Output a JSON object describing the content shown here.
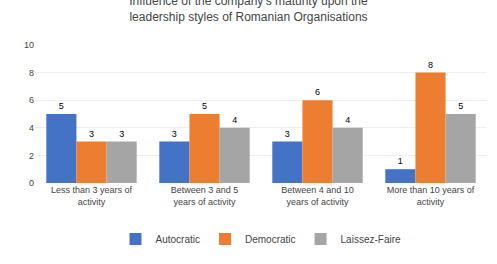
{
  "chart_data": {
    "type": "bar",
    "title": "Influence of the company's maturity upon the\nleadership styles of Romanian Organisations",
    "categories": [
      "Less than 3 years of\nactivity",
      "Between 3 and 5\nyears of activity",
      "Between 4 and 10\nyears of activity",
      "More than 10 years of\nactivity"
    ],
    "series": [
      {
        "name": "Autocratic",
        "color": "#4472C4",
        "values": [
          5,
          3,
          3,
          1
        ]
      },
      {
        "name": "Democratic",
        "color": "#ED7D31",
        "values": [
          3,
          5,
          6,
          8
        ]
      },
      {
        "name": "Laissez-Faire",
        "color": "#A5A5A5",
        "values": [
          3,
          4,
          4,
          5
        ]
      }
    ],
    "ylim": [
      0,
      10
    ],
    "yticks": [
      0,
      2,
      4,
      6,
      8,
      10
    ],
    "grid": true,
    "legend": "bottom",
    "data_labels": true
  }
}
